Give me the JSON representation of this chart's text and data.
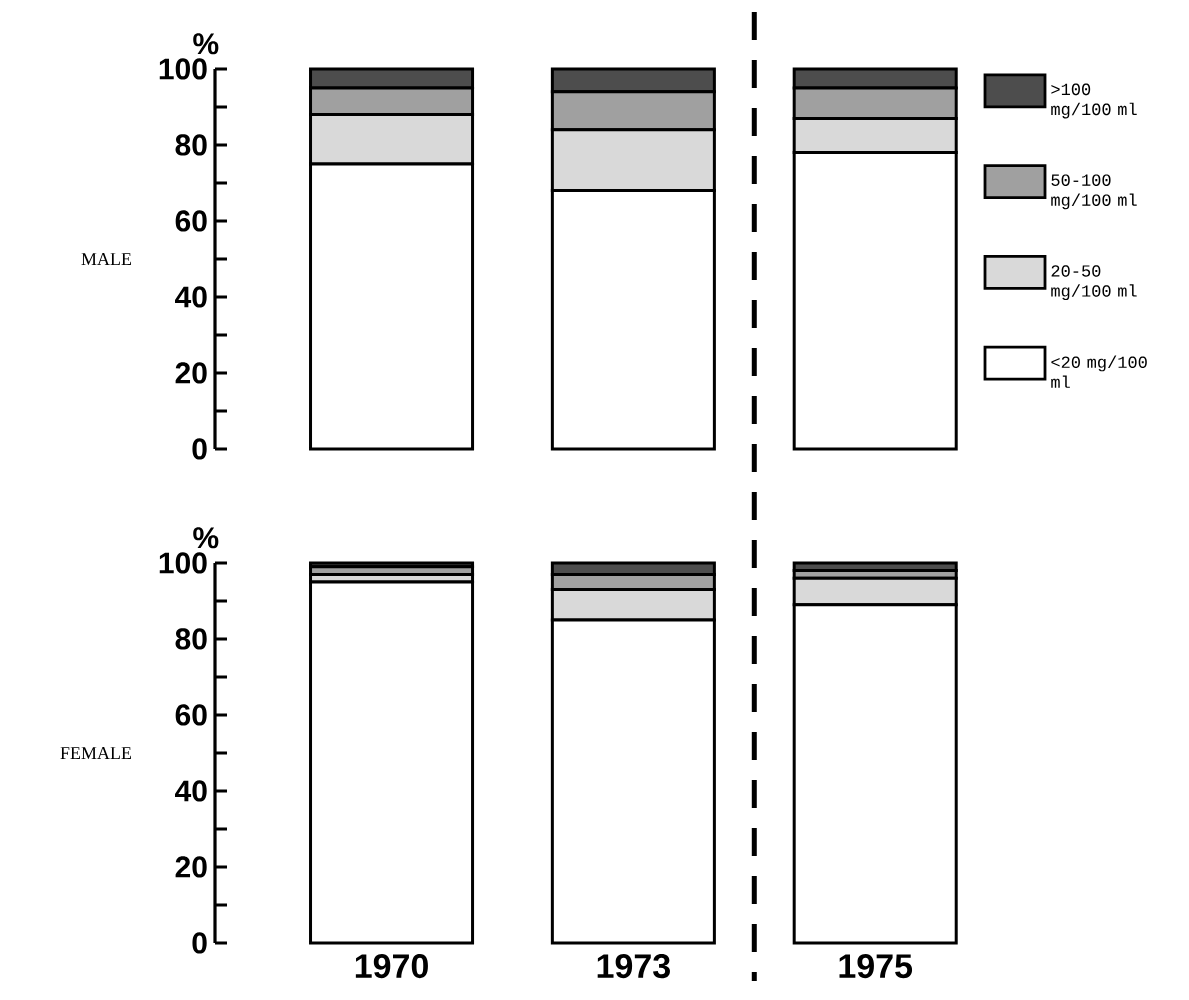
{
  "chart_data": [
    {
      "type": "bar",
      "stacked": true,
      "ylabel": "MALE",
      "annotations": [
        "%"
      ],
      "categories": [
        "1970",
        "1973",
        "1975"
      ],
      "ylim": [
        0,
        100
      ],
      "yticks": [
        0,
        20,
        40,
        60,
        80,
        100
      ],
      "tick_labels": "y",
      "legend": "right",
      "series": [
        {
          "name": "<20 mg/100 ml",
          "color": "#ffffff",
          "values": [
            75,
            68,
            78
          ]
        },
        {
          "name": "20-50 mg/100 ml",
          "color": "#d9d9d9",
          "values": [
            13,
            16,
            9
          ]
        },
        {
          "name": "50-100 mg/100 ml",
          "color": "#a0a0a0",
          "values": [
            7,
            10,
            8
          ]
        },
        {
          "name": ">100 mg/100 ml",
          "color": "#4d4d4d",
          "values": [
            5,
            6,
            5
          ]
        }
      ]
    },
    {
      "type": "bar",
      "stacked": true,
      "ylabel": "FEMALE",
      "annotations": [
        "%"
      ],
      "categories": [
        "1970",
        "1973",
        "1975"
      ],
      "ylim": [
        0,
        100
      ],
      "yticks": [
        0,
        20,
        40,
        60,
        80,
        100
      ],
      "series": [
        {
          "color": "#ffffff",
          "values": [
            95,
            85,
            89
          ]
        },
        {
          "color": "#d9d9d9",
          "values": [
            2,
            8,
            7
          ]
        },
        {
          "color": "#a0a0a0",
          "values": [
            2,
            4,
            2
          ]
        },
        {
          "color": "#4d4d4d",
          "values": [
            1,
            3,
            2
          ]
        }
      ]
    }
  ]
}
